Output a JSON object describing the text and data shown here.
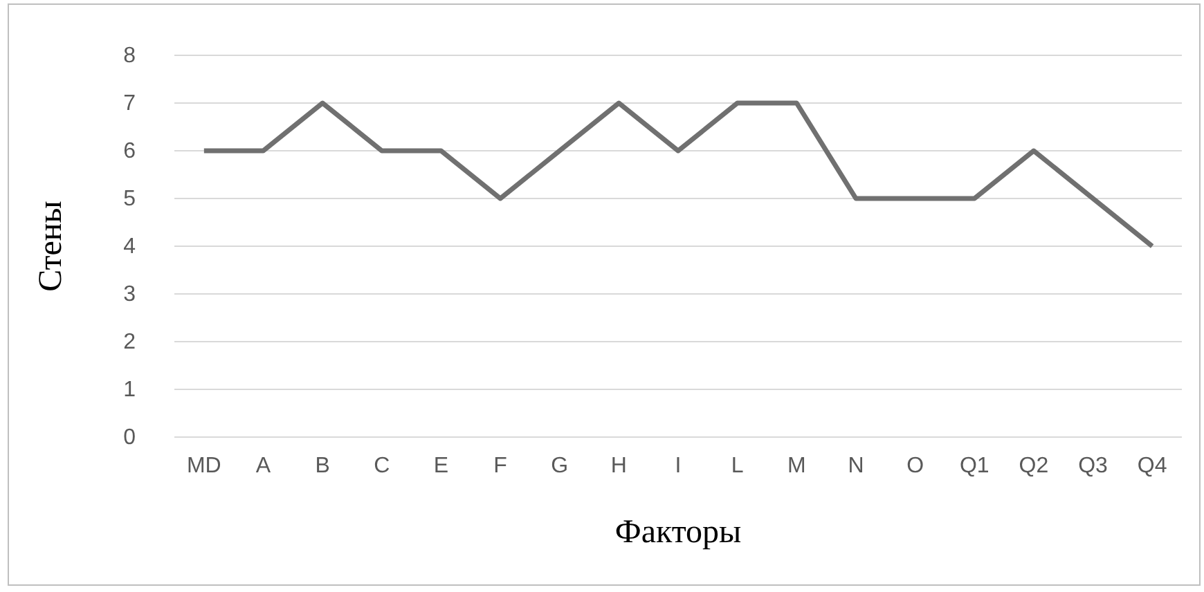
{
  "chart_data": {
    "type": "line",
    "xlabel": "Факторы",
    "ylabel": "Стены",
    "categories": [
      "MD",
      "A",
      "B",
      "C",
      "E",
      "F",
      "G",
      "H",
      "I",
      "L",
      "M",
      "N",
      "O",
      "Q1",
      "Q2",
      "Q3",
      "Q4"
    ],
    "series": [
      {
        "color": "#707070",
        "values": [
          6,
          6,
          7,
          6,
          6,
          5,
          6,
          7,
          6,
          7,
          7,
          5,
          5,
          5,
          6,
          5,
          4
        ]
      }
    ],
    "ylim": [
      0,
      8
    ],
    "yticks": [
      0,
      1,
      2,
      3,
      4,
      5,
      6,
      7,
      8
    ],
    "grid": "y",
    "legend": false,
    "marker": "none",
    "line_style": "solid"
  }
}
